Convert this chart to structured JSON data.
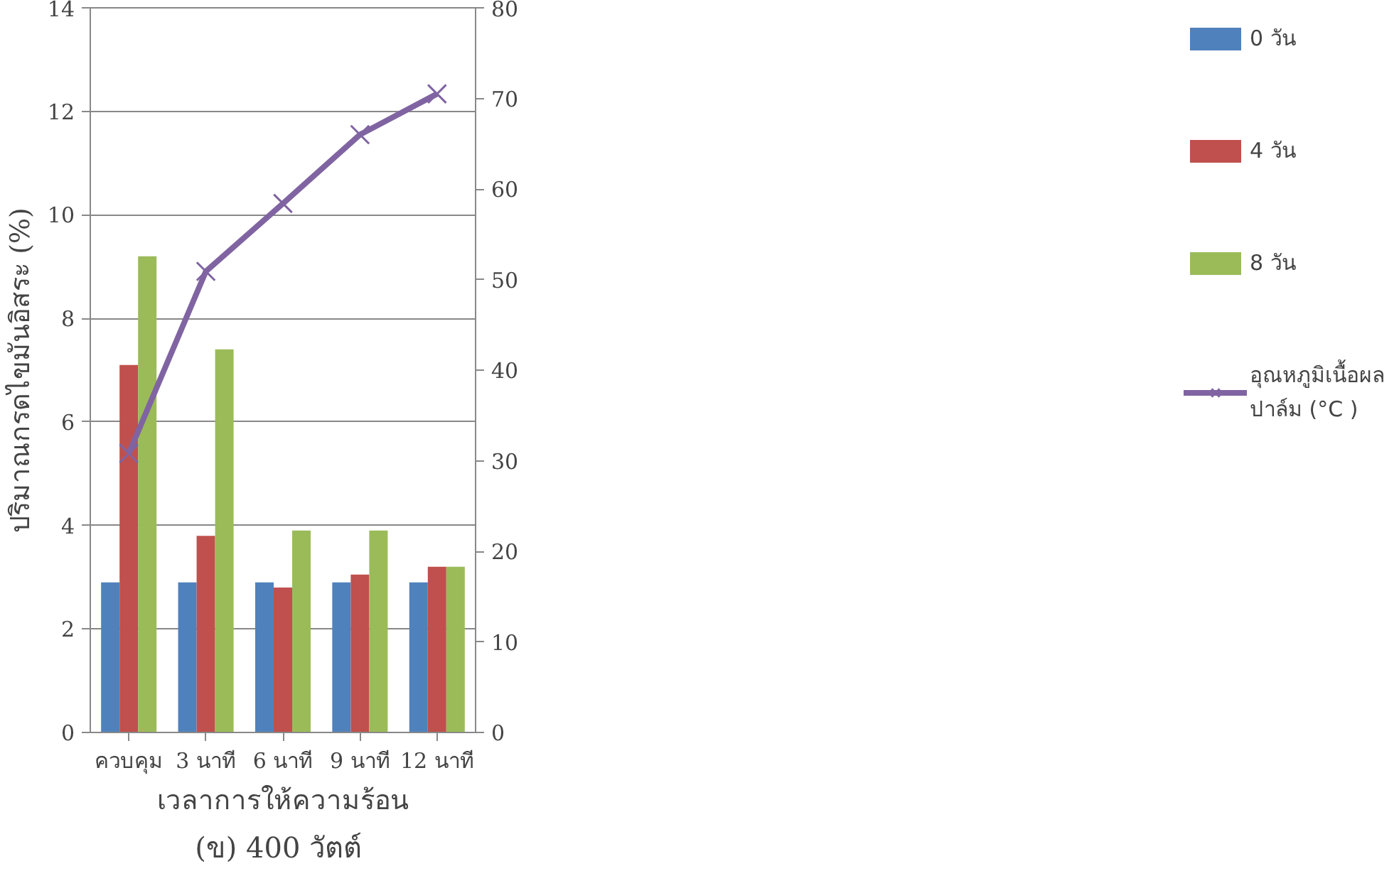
{
  "chart_data": {
    "type": "bar",
    "categories": [
      "ควบคุม",
      "3 นาที",
      "6 นาที",
      "9 นาที",
      "12 นาที"
    ],
    "xlabel": "เวลาการให้ความร้อน",
    "ylabel": "ปริมาณกรดไขมันอิสระ (%)",
    "annotations": [
      "(ข)  400 วัตต์"
    ],
    "ylim": [
      0,
      14
    ],
    "yticks": [
      0,
      2,
      4,
      6,
      8,
      10,
      12,
      14
    ],
    "y2lim": [
      0,
      80
    ],
    "y2ticks": [
      0,
      10,
      20,
      30,
      40,
      50,
      60,
      70,
      80
    ],
    "grid": "y",
    "legend": "right",
    "series": [
      {
        "name": "0 วัน",
        "color": "#4f81bd",
        "values": [
          2.9,
          2.9,
          2.9,
          2.9,
          2.9
        ]
      },
      {
        "name": "4 วัน",
        "color": "#c0504d",
        "values": [
          7.1,
          3.8,
          2.8,
          3.05,
          3.2
        ]
      },
      {
        "name": "8 วัน",
        "color": "#9bbb59",
        "values": [
          9.2,
          7.4,
          3.9,
          3.9,
          3.2
        ]
      },
      {
        "name": "อุณหภูมิเนื้อผลปาล์ม (°C )",
        "type": "line",
        "axis": "y2",
        "marker": "cross",
        "color": "#8064a2",
        "values": [
          30.8,
          50.9,
          58.4,
          66,
          70.5
        ]
      }
    ]
  }
}
